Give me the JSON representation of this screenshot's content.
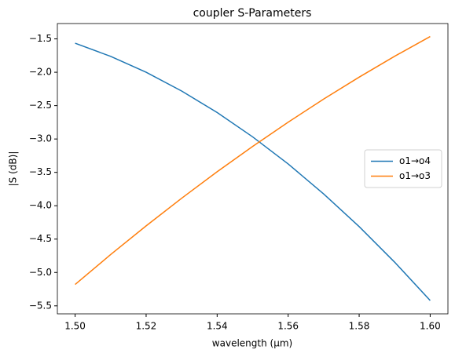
{
  "chart_data": {
    "type": "line",
    "title": "coupler S-Parameters",
    "xlabel": "wavelength (µm)",
    "ylabel": "|S (dB)|",
    "x": [
      1.5,
      1.51,
      1.52,
      1.53,
      1.54,
      1.55,
      1.56,
      1.57,
      1.58,
      1.59,
      1.6
    ],
    "series": [
      {
        "name": "o1→o4",
        "color": "#1f77b4",
        "values": [
          -1.565,
          -1.762,
          -2.0,
          -2.281,
          -2.603,
          -2.968,
          -3.374,
          -3.823,
          -4.313,
          -4.846,
          -5.42
        ]
      },
      {
        "name": "o1→o3",
        "color": "#ff7f0e",
        "values": [
          -5.18,
          -4.732,
          -4.302,
          -3.888,
          -3.491,
          -3.111,
          -2.748,
          -2.402,
          -2.073,
          -1.76,
          -1.465
        ]
      }
    ],
    "xlim": [
      1.495,
      1.605
    ],
    "xticks": [
      {
        "value": 1.5,
        "label": "1.50"
      },
      {
        "value": 1.52,
        "label": "1.52"
      },
      {
        "value": 1.54,
        "label": "1.54"
      },
      {
        "value": 1.56,
        "label": "1.56"
      },
      {
        "value": 1.58,
        "label": "1.58"
      },
      {
        "value": 1.6,
        "label": "1.60"
      }
    ],
    "ylim": [
      -5.62,
      -1.27
    ],
    "yticks": [
      {
        "value": -5.5,
        "label": "−5.5"
      },
      {
        "value": -5.0,
        "label": "−5.0"
      },
      {
        "value": -4.5,
        "label": "−4.5"
      },
      {
        "value": -4.0,
        "label": "−4.0"
      },
      {
        "value": -3.5,
        "label": "−3.5"
      },
      {
        "value": -3.0,
        "label": "−3.0"
      },
      {
        "value": -2.5,
        "label": "−2.5"
      },
      {
        "value": -2.0,
        "label": "−2.0"
      },
      {
        "value": -1.5,
        "label": "−1.5"
      }
    ],
    "grid": false,
    "legend": "center right"
  }
}
